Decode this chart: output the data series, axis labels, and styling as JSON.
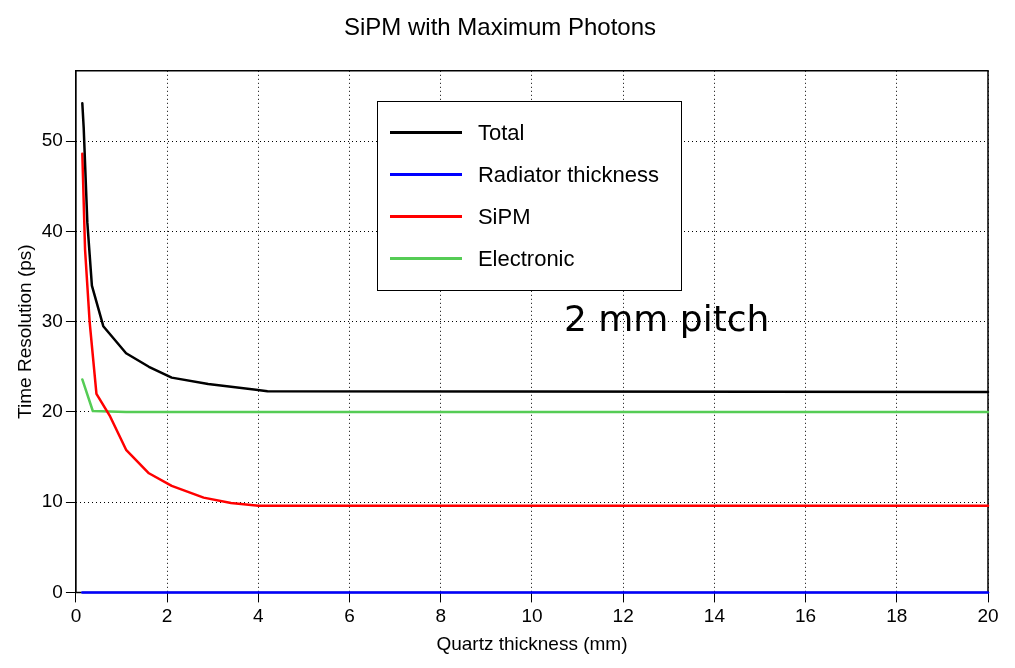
{
  "chart_data": {
    "type": "line",
    "title": "SiPM with Maximum Photons",
    "xlabel": "Quartz thickness (mm)",
    "ylabel": "Time Resolution (ps)",
    "xlim": [
      0,
      20
    ],
    "xticks": [
      0,
      2,
      4,
      6,
      8,
      10,
      12,
      14,
      16,
      18,
      20
    ],
    "ylim": [
      0,
      57.8
    ],
    "yticks": [
      0,
      10,
      20,
      30,
      40,
      50
    ],
    "grid": true,
    "legend": "top",
    "marker": "none",
    "line_style": "solid",
    "annotations": [
      "2 mm pitch"
    ],
    "series": [
      {
        "name": "Total",
        "color": "#000000",
        "x": [
          0.14,
          0.17,
          0.25,
          0.35,
          0.6,
          1.1,
          1.6,
          2.1,
          2.9,
          4.2,
          20
        ],
        "values": [
          54.2,
          51.5,
          41,
          34,
          29.5,
          26.5,
          25,
          23.8,
          23.1,
          22.3,
          22.2
        ]
      },
      {
        "name": "Radiator thickness",
        "color": "#0000ff",
        "x": [
          0.14,
          20
        ],
        "values": [
          0,
          0
        ]
      },
      {
        "name": "SiPM",
        "color": "#ff0000",
        "x": [
          0.14,
          0.2,
          0.3,
          0.45,
          0.75,
          1.1,
          1.6,
          2.1,
          2.8,
          3.4,
          4,
          20
        ],
        "values": [
          48.6,
          38,
          30,
          22,
          19.5,
          15.8,
          13.2,
          11.8,
          10.5,
          9.9,
          9.6,
          9.6
        ]
      },
      {
        "name": "Electronic",
        "color": "#55cc55",
        "x": [
          0.14,
          0.37,
          1.1,
          20
        ],
        "values": [
          23.6,
          20.1,
          20,
          20
        ]
      }
    ]
  }
}
